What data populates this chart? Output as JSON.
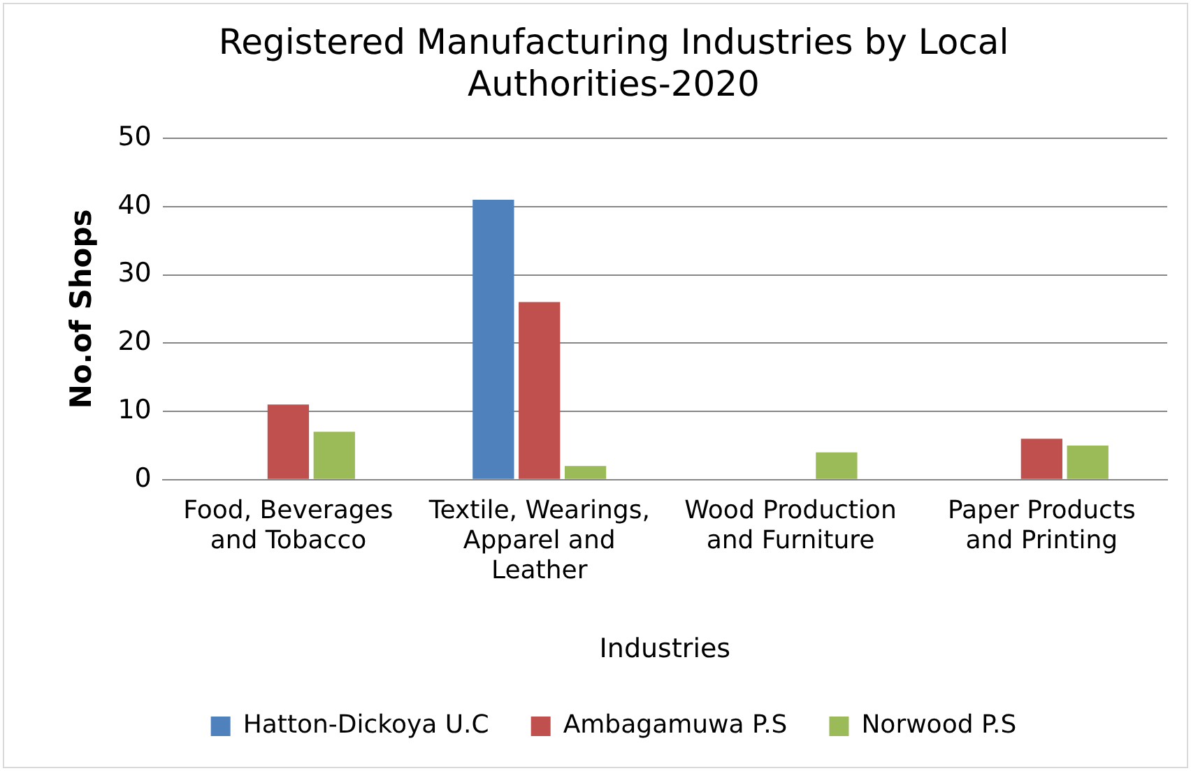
{
  "chart_data": {
    "type": "bar",
    "title": "Registered Manufacturing Industries by Local Authorities-2020",
    "xlabel": "Industries",
    "ylabel": "No.of Shops",
    "categories": [
      "Food, Beverages and Tobacco",
      "Textile, Wearings, Apparel and Leather",
      "Wood Production and Furniture",
      "Paper Products and Printing"
    ],
    "series": [
      {
        "name": "Hatton-Dickoya U.C",
        "color": "#4f81bd",
        "values": [
          0,
          41,
          0,
          0
        ]
      },
      {
        "name": "Ambagamuwa P.S",
        "color": "#c0504d",
        "values": [
          11,
          26,
          0,
          6
        ]
      },
      {
        "name": "Norwood P.S",
        "color": "#9bbb59",
        "values": [
          7,
          2,
          4,
          5
        ]
      }
    ],
    "ylim": [
      0,
      50
    ],
    "yticks": [
      0,
      10,
      20,
      30,
      40,
      50
    ],
    "grid": "y",
    "legend": "bottom"
  }
}
